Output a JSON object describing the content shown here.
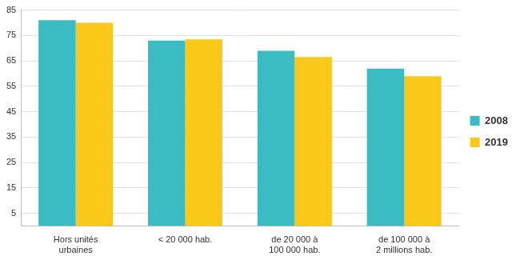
{
  "chart_data": {
    "type": "bar",
    "categories": [
      [
        "Hors unités",
        "urbaines"
      ],
      "< 20 000 hab.",
      [
        "de 20 000 à",
        "100 000 hab."
      ],
      [
        "de 100 000 à",
        "2 millions hab."
      ]
    ],
    "series": [
      {
        "name": "2008",
        "color": "#3bbcc2",
        "values": [
          81,
          73,
          69,
          62
        ]
      },
      {
        "name": "2019",
        "color": "#f9c818",
        "values": [
          80,
          73.5,
          66.5,
          59
        ]
      }
    ],
    "ylim": [
      0,
      85
    ],
    "yticks": [
      5,
      15,
      25,
      35,
      45,
      55,
      65,
      75,
      85
    ],
    "grid": true,
    "legend": "right"
  }
}
